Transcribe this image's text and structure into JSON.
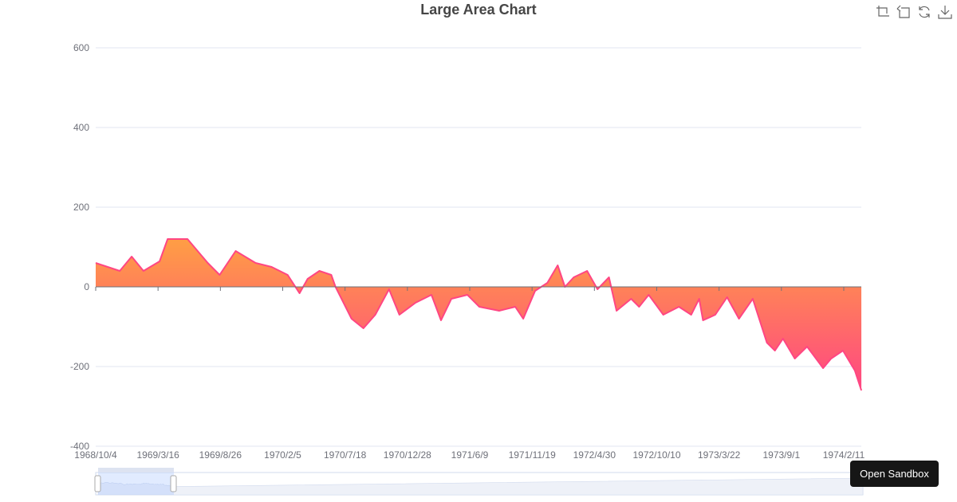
{
  "toolbox": {
    "icons": [
      "zoom-icon",
      "zoom-back-icon",
      "restore-icon",
      "save-image-icon"
    ]
  },
  "sandbox_button": "Open Sandbox",
  "colors": {
    "line": "#ff4683",
    "area_top": "#ff9e44",
    "area_bottom": "#ff4683",
    "grid": "#e0e6f1",
    "axis": "#6e7079"
  },
  "chart_data": {
    "type": "area",
    "title": "Large Area Chart",
    "xlabel": "",
    "ylabel": "",
    "ylim": [
      -400,
      600
    ],
    "yticks": [
      "600",
      "400",
      "200",
      "0",
      "-200",
      "-400"
    ],
    "xticks": [
      "1968/10/4",
      "1969/3/16",
      "1969/8/26",
      "1970/2/5",
      "1970/7/18",
      "1970/12/28",
      "1971/6/9",
      "1971/11/19",
      "1972/4/30",
      "1972/10/10",
      "1973/3/22",
      "1973/9/1",
      "1974/2/11"
    ],
    "grid": true,
    "datazoom": {
      "start_percent": 0,
      "end_percent": 10
    },
    "x": [
      "1968/10/4",
      "1968/12/6",
      "1969/1/6",
      "1969/2/6",
      "1969/3/20",
      "1969/4/10",
      "1969/6/1",
      "1969/7/24",
      "1969/8/24",
      "1969/10/5",
      "1969/11/26",
      "1970/1/7",
      "1970/2/18",
      "1970/3/21",
      "1970/4/11",
      "1970/5/12",
      "1970/6/12",
      "1970/6/23",
      "1970/8/4",
      "1970/9/4",
      "1970/10/5",
      "1970/11/10",
      "1970/12/7",
      "1971/1/18",
      "1971/3/1",
      "1971/3/26",
      "1971/4/22",
      "1971/6/3",
      "1971/7/4",
      "1971/8/25",
      "1971/10/6",
      "1971/10/27",
      "1971/11/27",
      "1971/12/29",
      "1972/1/25",
      "1972/2/13",
      "1972/3/7",
      "1972/4/11",
      "1972/5/8",
      "1972/6/7",
      "1972/6/27",
      "1972/8/4",
      "1972/8/25",
      "1972/9/19",
      "1972/10/27",
      "1972/12/7",
      "1973/1/8",
      "1973/1/29",
      "1973/2/8",
      "1973/3/12",
      "1973/4/12",
      "1973/5/13",
      "1973/6/18",
      "1973/7/25",
      "1973/8/15",
      "1973/9/5",
      "1973/10/6",
      "1973/11/7",
      "1973/12/19",
      "1974/1/9",
      "1974/2/9",
      "1974/3/12",
      "1974/3/29"
    ],
    "values": [
      60,
      40,
      76,
      40,
      64,
      120,
      120,
      60,
      30,
      90,
      60,
      50,
      30,
      -16,
      20,
      40,
      30,
      0,
      -80,
      -104,
      -70,
      -6,
      -70,
      -40,
      -20,
      -84,
      -30,
      -20,
      -50,
      -60,
      -50,
      -80,
      -10,
      10,
      54,
      0,
      24,
      40,
      -6,
      24,
      -60,
      -30,
      -50,
      -20,
      -70,
      -50,
      -70,
      -30,
      -84,
      -70,
      -26,
      -80,
      -30,
      -140,
      -160,
      -130,
      -180,
      -150,
      -204,
      -180,
      -160,
      -210,
      -260
    ]
  }
}
